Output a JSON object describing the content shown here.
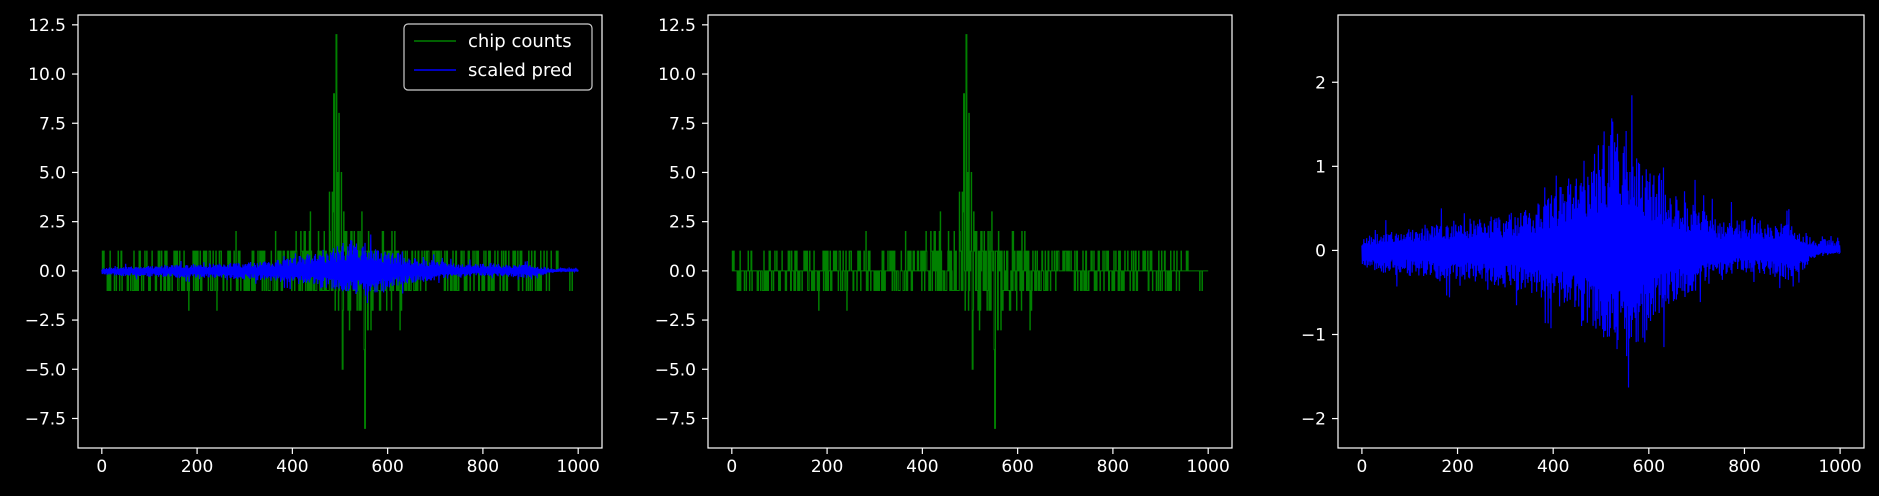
{
  "figure": {
    "background": "#000000",
    "axis_color": "#ffffff"
  },
  "chart_data": [
    {
      "type": "line",
      "xlim": [
        -50,
        1050
      ],
      "ylim": [
        -9,
        13
      ],
      "xticks": [
        0,
        200,
        400,
        600,
        800,
        1000
      ],
      "xtick_labels": [
        "0",
        "200",
        "400",
        "600",
        "800",
        "1000"
      ],
      "yticks": [
        -7.5,
        -5.0,
        -2.5,
        0.0,
        2.5,
        5.0,
        7.5,
        10.0,
        12.5
      ],
      "ytick_labels": [
        "−7.5",
        "−5.0",
        "−2.5",
        "0.0",
        "2.5",
        "5.0",
        "7.5",
        "10.0",
        "12.5"
      ],
      "legend": {
        "position": "top-right",
        "entries": [
          "chip counts",
          "scaled pred"
        ]
      },
      "series": [
        {
          "name": "chip counts",
          "color": "#008000",
          "kind": "signed-spikes",
          "x_range": [
            0,
            1000
          ],
          "n": 1000,
          "envelope_pos": [
            [
              0,
              1
            ],
            [
              100,
              1
            ],
            [
              200,
              1
            ],
            [
              300,
              2
            ],
            [
              400,
              2
            ],
            [
              430,
              3
            ],
            [
              460,
              3
            ],
            [
              480,
              6
            ],
            [
              487,
              9
            ],
            [
              492,
              12
            ],
            [
              500,
              7
            ],
            [
              520,
              4
            ],
            [
              560,
              3
            ],
            [
              600,
              2
            ],
            [
              700,
              2
            ],
            [
              800,
              1
            ],
            [
              900,
              1
            ],
            [
              1000,
              0
            ]
          ],
          "envelope_neg": [
            [
              0,
              -1
            ],
            [
              100,
              -1
            ],
            [
              200,
              -2
            ],
            [
              300,
              -1
            ],
            [
              400,
              -2
            ],
            [
              460,
              -2
            ],
            [
              490,
              -3
            ],
            [
              505,
              -5
            ],
            [
              520,
              -4
            ],
            [
              540,
              -4
            ],
            [
              552,
              -8
            ],
            [
              570,
              -3
            ],
            [
              620,
              -3
            ],
            [
              700,
              -1
            ],
            [
              800,
              -1
            ],
            [
              900,
              -1
            ],
            [
              1000,
              0
            ]
          ]
        },
        {
          "name": "scaled pred",
          "color": "#0000ff",
          "kind": "envelope-band",
          "x_range": [
            0,
            1000
          ],
          "n": 1000,
          "envelope_pos": [
            [
              0,
              0.2
            ],
            [
              50,
              0.3
            ],
            [
              100,
              0.35
            ],
            [
              200,
              0.45
            ],
            [
              300,
              0.55
            ],
            [
              400,
              0.8
            ],
            [
              450,
              1.3
            ],
            [
              500,
              1.6
            ],
            [
              550,
              1.9
            ],
            [
              600,
              1.3
            ],
            [
              650,
              0.9
            ],
            [
              700,
              0.7
            ],
            [
              750,
              0.45
            ],
            [
              800,
              0.5
            ],
            [
              850,
              0.45
            ],
            [
              900,
              0.4
            ],
            [
              950,
              0.15
            ],
            [
              1000,
              0.2
            ]
          ],
          "envelope_neg": [
            [
              0,
              -0.25
            ],
            [
              50,
              -0.35
            ],
            [
              100,
              -0.4
            ],
            [
              200,
              -0.5
            ],
            [
              300,
              -0.55
            ],
            [
              400,
              -0.75
            ],
            [
              450,
              -1.1
            ],
            [
              500,
              -1.3
            ],
            [
              550,
              -1.7
            ],
            [
              600,
              -1.2
            ],
            [
              650,
              -0.8
            ],
            [
              700,
              -0.6
            ],
            [
              750,
              -0.4
            ],
            [
              800,
              -0.3
            ],
            [
              850,
              -0.4
            ],
            [
              900,
              -0.45
            ],
            [
              950,
              -0.1
            ],
            [
              1000,
              -0.05
            ]
          ]
        }
      ]
    },
    {
      "type": "line",
      "xlim": [
        -50,
        1050
      ],
      "ylim": [
        -9,
        13
      ],
      "xticks": [
        0,
        200,
        400,
        600,
        800,
        1000
      ],
      "xtick_labels": [
        "0",
        "200",
        "400",
        "600",
        "800",
        "1000"
      ],
      "yticks": [
        -7.5,
        -5.0,
        -2.5,
        0.0,
        2.5,
        5.0,
        7.5,
        10.0,
        12.5
      ],
      "ytick_labels": [
        "−7.5",
        "−5.0",
        "−2.5",
        "0.0",
        "2.5",
        "5.0",
        "7.5",
        "10.0",
        "12.5"
      ],
      "series": [
        {
          "color": "#008000",
          "kind": "signed-spikes",
          "x_range": [
            0,
            1000
          ],
          "n": 1000,
          "envelope_pos": [
            [
              0,
              1
            ],
            [
              100,
              1
            ],
            [
              200,
              1
            ],
            [
              300,
              2
            ],
            [
              400,
              2
            ],
            [
              430,
              3
            ],
            [
              460,
              3
            ],
            [
              480,
              6
            ],
            [
              487,
              9
            ],
            [
              492,
              12
            ],
            [
              500,
              7
            ],
            [
              520,
              4
            ],
            [
              560,
              3
            ],
            [
              600,
              2
            ],
            [
              700,
              2
            ],
            [
              800,
              1
            ],
            [
              900,
              1
            ],
            [
              1000,
              0
            ]
          ],
          "envelope_neg": [
            [
              0,
              -1
            ],
            [
              100,
              -1
            ],
            [
              200,
              -2
            ],
            [
              300,
              -1
            ],
            [
              400,
              -2
            ],
            [
              460,
              -2
            ],
            [
              490,
              -3
            ],
            [
              505,
              -5
            ],
            [
              520,
              -4
            ],
            [
              540,
              -4
            ],
            [
              552,
              -8
            ],
            [
              570,
              -3
            ],
            [
              620,
              -3
            ],
            [
              700,
              -1
            ],
            [
              800,
              -1
            ],
            [
              900,
              -1
            ],
            [
              1000,
              0
            ]
          ]
        }
      ]
    },
    {
      "type": "line",
      "xlim": [
        -50,
        1050
      ],
      "ylim": [
        -2.35,
        2.8
      ],
      "xticks": [
        0,
        200,
        400,
        600,
        800,
        1000
      ],
      "xtick_labels": [
        "0",
        "200",
        "400",
        "600",
        "800",
        "1000"
      ],
      "yticks": [
        -2,
        -1,
        0,
        1,
        2
      ],
      "ytick_labels": [
        "−2",
        "−1",
        "0",
        "1",
        "2"
      ],
      "series": [
        {
          "color": "#0000ff",
          "kind": "envelope-band",
          "x_range": [
            0,
            1000
          ],
          "n": 1000,
          "envelope_pos": [
            [
              0,
              0.2
            ],
            [
              50,
              0.3
            ],
            [
              100,
              0.35
            ],
            [
              200,
              0.45
            ],
            [
              300,
              0.55
            ],
            [
              400,
              0.8
            ],
            [
              450,
              1.3
            ],
            [
              500,
              1.6
            ],
            [
              550,
              1.9
            ],
            [
              600,
              1.3
            ],
            [
              650,
              0.9
            ],
            [
              700,
              0.7
            ],
            [
              750,
              0.45
            ],
            [
              800,
              0.5
            ],
            [
              850,
              0.45
            ],
            [
              900,
              0.4
            ],
            [
              950,
              0.15
            ],
            [
              1000,
              0.2
            ]
          ],
          "envelope_neg": [
            [
              0,
              -0.25
            ],
            [
              50,
              -0.35
            ],
            [
              100,
              -0.4
            ],
            [
              200,
              -0.5
            ],
            [
              300,
              -0.55
            ],
            [
              400,
              -0.75
            ],
            [
              450,
              -1.1
            ],
            [
              500,
              -1.3
            ],
            [
              550,
              -1.7
            ],
            [
              600,
              -1.2
            ],
            [
              650,
              -0.8
            ],
            [
              700,
              -0.6
            ],
            [
              750,
              -0.4
            ],
            [
              800,
              -0.3
            ],
            [
              850,
              -0.4
            ],
            [
              900,
              -0.45
            ],
            [
              950,
              -0.1
            ],
            [
              1000,
              -0.05
            ]
          ]
        }
      ]
    }
  ]
}
